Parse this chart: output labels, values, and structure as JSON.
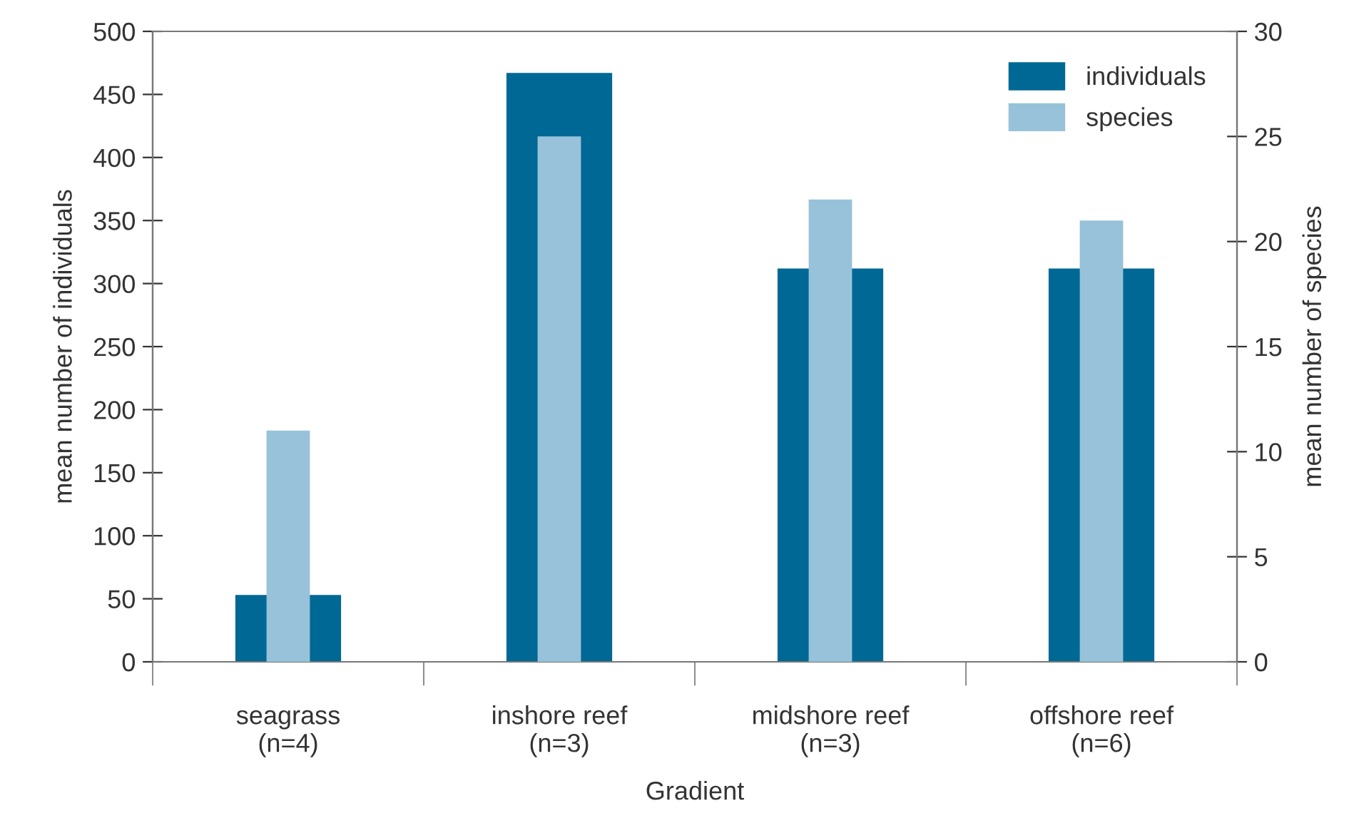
{
  "chart_data": {
    "type": "bar",
    "xlabel": "Gradient",
    "ylabel": "mean number of individuals",
    "y2label": "mean number of species",
    "categories": [
      "seagrass\n(n=4)",
      "inshore reef\n(n=3)",
      "midshore reef\n(n=3)",
      "offshore reef\n(n=6)"
    ],
    "series": [
      {
        "name": "individuals",
        "color": "#006894",
        "values": [
          53,
          467,
          312,
          312
        ]
      },
      {
        "name": "species",
        "color": "#97c2d9",
        "values": [
          11,
          25,
          22,
          21
        ],
        "axis": "y2"
      }
    ],
    "ylim": [
      0,
      500
    ],
    "yticks": [
      0,
      50,
      100,
      150,
      200,
      250,
      300,
      350,
      400,
      450,
      500
    ],
    "y2lim": [
      0,
      30
    ],
    "y2ticks": [
      0,
      5,
      10,
      15,
      20,
      25,
      30
    ],
    "legend": "top right",
    "grid": false
  }
}
